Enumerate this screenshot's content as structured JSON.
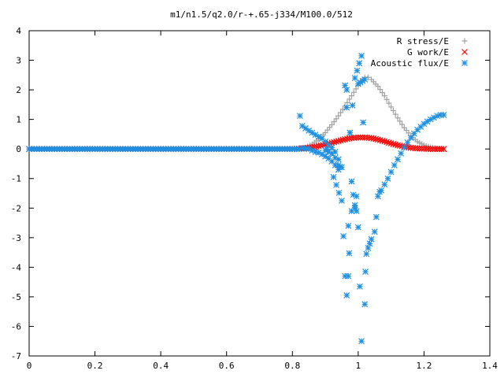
{
  "chart_data": {
    "type": "scatter",
    "title": "m1/n1.5/q2.0/r-+.65-j334/M100.0/512",
    "xlabel": "",
    "ylabel": "",
    "xlim": [
      0,
      1.4
    ],
    "ylim": [
      -7,
      4
    ],
    "xticks": [
      "0",
      "0.2",
      "0.4",
      "0.6",
      "0.8",
      "1",
      "1.2",
      "1.4"
    ],
    "yticks": [
      "4",
      "3",
      "2",
      "1",
      "0",
      "-1",
      "-2",
      "-3",
      "-4",
      "-5",
      "-6",
      "-7"
    ],
    "legend_position": "top-right",
    "grid": false,
    "series": [
      {
        "name": "R stress/E",
        "marker": "plus",
        "color": "#a0a0a0",
        "points": [
          [
            0.0,
            0.0
          ],
          [
            0.1,
            0.0
          ],
          [
            0.2,
            0.0
          ],
          [
            0.3,
            0.0
          ],
          [
            0.4,
            0.0
          ],
          [
            0.5,
            0.0
          ],
          [
            0.6,
            0.0
          ],
          [
            0.7,
            0.0
          ],
          [
            0.8,
            0.0
          ],
          [
            0.82,
            0.0
          ],
          [
            0.84,
            0.05
          ],
          [
            0.86,
            0.16
          ],
          [
            0.88,
            0.33
          ],
          [
            0.9,
            0.55
          ],
          [
            0.92,
            0.82
          ],
          [
            0.94,
            1.12
          ],
          [
            0.96,
            1.45
          ],
          [
            0.98,
            1.8
          ],
          [
            1.0,
            2.15
          ],
          [
            1.01,
            2.3
          ],
          [
            1.02,
            2.42
          ],
          [
            1.03,
            2.42
          ],
          [
            1.04,
            2.35
          ],
          [
            1.06,
            2.12
          ],
          [
            1.08,
            1.8
          ],
          [
            1.1,
            1.42
          ],
          [
            1.12,
            1.05
          ],
          [
            1.14,
            0.72
          ],
          [
            1.16,
            0.45
          ],
          [
            1.18,
            0.25
          ],
          [
            1.2,
            0.13
          ],
          [
            1.22,
            0.06
          ],
          [
            1.24,
            0.02
          ],
          [
            1.26,
            0.0
          ]
        ]
      },
      {
        "name": "G work/E",
        "marker": "cross",
        "color": "#ff0000",
        "points": [
          [
            0.0,
            0.0
          ],
          [
            0.1,
            0.0
          ],
          [
            0.2,
            0.0
          ],
          [
            0.3,
            0.0
          ],
          [
            0.4,
            0.0
          ],
          [
            0.5,
            0.0
          ],
          [
            0.6,
            0.0
          ],
          [
            0.7,
            0.0
          ],
          [
            0.8,
            0.0
          ],
          [
            0.82,
            0.01
          ],
          [
            0.84,
            0.03
          ],
          [
            0.86,
            0.06
          ],
          [
            0.88,
            0.1
          ],
          [
            0.9,
            0.15
          ],
          [
            0.92,
            0.21
          ],
          [
            0.94,
            0.27
          ],
          [
            0.96,
            0.33
          ],
          [
            0.98,
            0.37
          ],
          [
            1.0,
            0.39
          ],
          [
            1.02,
            0.39
          ],
          [
            1.04,
            0.37
          ],
          [
            1.06,
            0.32
          ],
          [
            1.08,
            0.26
          ],
          [
            1.1,
            0.19
          ],
          [
            1.12,
            0.13
          ],
          [
            1.14,
            0.08
          ],
          [
            1.16,
            0.04
          ],
          [
            1.18,
            0.02
          ],
          [
            1.2,
            0.01
          ],
          [
            1.22,
            0.0
          ],
          [
            1.24,
            0.0
          ],
          [
            1.26,
            0.0
          ]
        ]
      },
      {
        "name": "Acoustic flux/E",
        "marker": "star",
        "color": "#1f8fe0",
        "points": [
          [
            0.0,
            0.0
          ],
          [
            0.1,
            0.0
          ],
          [
            0.2,
            0.0
          ],
          [
            0.3,
            0.0
          ],
          [
            0.4,
            0.0
          ],
          [
            0.5,
            0.0
          ],
          [
            0.6,
            0.0
          ],
          [
            0.7,
            0.0
          ],
          [
            0.8,
            0.0
          ],
          [
            0.82,
            0.0
          ],
          [
            0.83,
            0.03
          ],
          [
            0.85,
            0.0
          ],
          [
            0.86,
            -0.05
          ],
          [
            0.87,
            -0.1
          ],
          [
            0.88,
            -0.12
          ],
          [
            0.89,
            -0.18
          ],
          [
            0.9,
            -0.25
          ],
          [
            0.91,
            -0.32
          ],
          [
            0.92,
            -0.42
          ],
          [
            0.93,
            -0.55
          ],
          [
            0.94,
            -0.7
          ],
          [
            0.95,
            -0.62
          ],
          [
            0.823,
            1.12
          ],
          [
            0.83,
            0.78
          ],
          [
            0.84,
            0.7
          ],
          [
            0.85,
            0.62
          ],
          [
            0.86,
            0.55
          ],
          [
            0.87,
            0.48
          ],
          [
            0.88,
            0.42
          ],
          [
            0.89,
            0.35
          ],
          [
            0.9,
            0.25
          ],
          [
            0.91,
            0.15
          ],
          [
            0.92,
            0.05
          ],
          [
            0.93,
            -0.1
          ],
          [
            0.94,
            -0.35
          ],
          [
            0.9,
            -0.05
          ],
          [
            0.905,
            0.0
          ],
          [
            0.91,
            -0.1
          ],
          [
            0.92,
            -0.15
          ],
          [
            0.93,
            -0.3
          ],
          [
            0.94,
            -0.55
          ],
          [
            0.945,
            -0.6
          ],
          [
            0.925,
            -0.95
          ],
          [
            0.95,
            -1.75
          ],
          [
            0.955,
            -2.95
          ],
          [
            0.96,
            -4.3
          ],
          [
            0.965,
            1.4
          ],
          [
            0.97,
            -2.6
          ],
          [
            0.975,
            0.55
          ],
          [
            0.98,
            -1.1
          ],
          [
            0.985,
            -1.55
          ],
          [
            0.99,
            -2.0
          ],
          [
            0.995,
            -1.6
          ],
          [
            1.0,
            -2.65
          ],
          [
            1.005,
            -4.65
          ],
          [
            1.01,
            -6.5
          ],
          [
            1.015,
            0.9
          ],
          [
            1.02,
            -5.25
          ],
          [
            1.022,
            -4.15
          ],
          [
            1.025,
            -3.55
          ],
          [
            1.03,
            -3.35
          ],
          [
            1.035,
            -3.2
          ],
          [
            1.04,
            -3.05
          ],
          [
            1.05,
            -2.8
          ],
          [
            1.055,
            -2.3
          ],
          [
            1.06,
            -1.6
          ],
          [
            1.065,
            -1.45
          ],
          [
            1.07,
            -1.4
          ],
          [
            1.08,
            -1.2
          ],
          [
            1.09,
            -1.0
          ],
          [
            1.1,
            -0.78
          ],
          [
            1.11,
            -0.55
          ],
          [
            1.12,
            -0.35
          ],
          [
            1.13,
            -0.15
          ],
          [
            1.14,
            0.05
          ],
          [
            1.15,
            0.22
          ],
          [
            1.16,
            0.38
          ],
          [
            1.17,
            0.52
          ],
          [
            1.18,
            0.65
          ],
          [
            1.19,
            0.75
          ],
          [
            1.2,
            0.85
          ],
          [
            1.21,
            0.93
          ],
          [
            1.22,
            1.0
          ],
          [
            1.23,
            1.06
          ],
          [
            1.24,
            1.12
          ],
          [
            1.25,
            1.15
          ],
          [
            1.26,
            1.15
          ],
          [
            0.96,
            2.15
          ],
          [
            0.965,
            2.0
          ],
          [
            0.975,
            0.55
          ],
          [
            0.99,
            2.4
          ],
          [
            1.01,
            3.15
          ],
          [
            1.0,
            2.2
          ],
          [
            1.02,
            2.35
          ],
          [
            0.97,
            -4.3
          ],
          [
            0.965,
            -4.95
          ],
          [
            0.98,
            -2.1
          ],
          [
            0.99,
            -1.9
          ],
          [
            0.995,
            -2.1
          ]
        ]
      }
    ]
  }
}
